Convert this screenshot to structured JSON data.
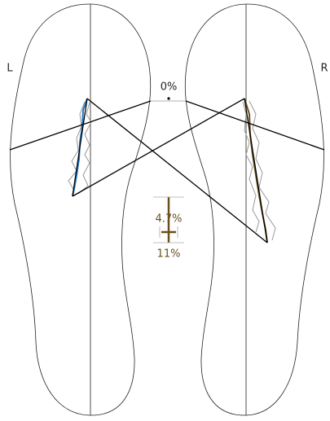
{
  "labels": {
    "left": "L",
    "right": "R"
  },
  "indicators": {
    "top": "0%",
    "middle": "4.7%",
    "bottom": "11%"
  }
}
